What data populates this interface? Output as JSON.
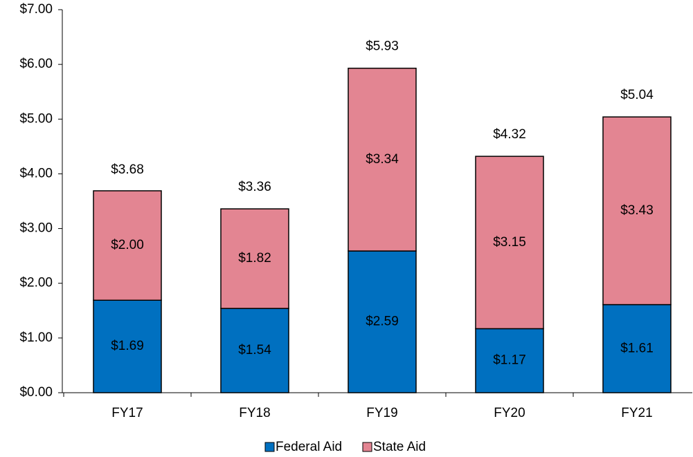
{
  "chart_data": {
    "type": "stacked_bar",
    "categories": [
      "FY17",
      "FY18",
      "FY19",
      "FY20",
      "FY21"
    ],
    "series": [
      {
        "name": "Federal Aid",
        "color": "#0070c0",
        "values": [
          1.69,
          1.54,
          2.59,
          1.17,
          1.61
        ],
        "value_labels": [
          "$1.69",
          "$1.54",
          "$2.59",
          "$1.17",
          "$1.61"
        ]
      },
      {
        "name": "State Aid",
        "color": "#e38592",
        "values": [
          2.0,
          1.82,
          3.34,
          3.15,
          3.43
        ],
        "value_labels": [
          "$2.00",
          "$1.82",
          "$3.34",
          "$3.15",
          "$3.43"
        ]
      }
    ],
    "totals": [
      3.68,
      3.36,
      5.93,
      4.32,
      5.04
    ],
    "total_labels": [
      "$3.68",
      "$3.36",
      "$5.93",
      "$4.32",
      "$5.04"
    ],
    "ylim": [
      0,
      7
    ],
    "yticks": [
      {
        "value": 0,
        "label": "$0.00"
      },
      {
        "value": 1,
        "label": "$1.00"
      },
      {
        "value": 2,
        "label": "$2.00"
      },
      {
        "value": 3,
        "label": "$3.00"
      },
      {
        "value": 4,
        "label": "$4.00"
      },
      {
        "value": 5,
        "label": "$5.00"
      },
      {
        "value": 6,
        "label": "$6.00"
      },
      {
        "value": 7,
        "label": "$7.00"
      }
    ],
    "grid": false,
    "legend": "bottom"
  }
}
